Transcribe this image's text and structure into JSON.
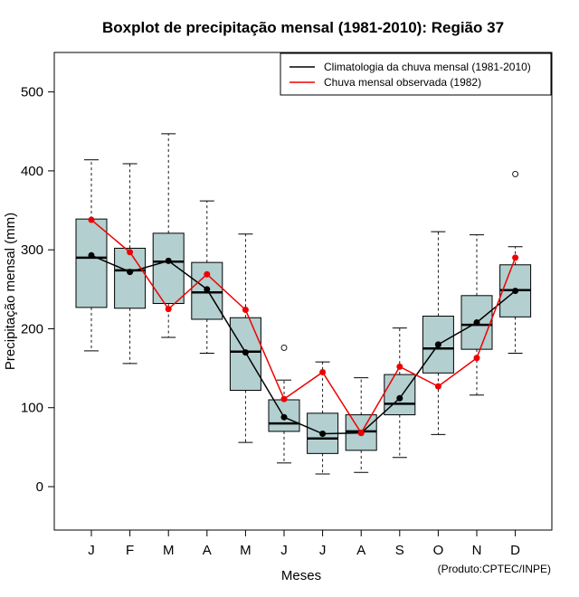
{
  "chart_data": {
    "type": "boxplot",
    "title": "Boxplot de precipitação mensal (1981-2010): Região 37",
    "xlabel": "Meses",
    "ylabel": "Precipitação mensal (mm)",
    "ylim": [
      -55,
      550
    ],
    "yticks": [
      0,
      100,
      200,
      300,
      400,
      500
    ],
    "categories": [
      "J",
      "F",
      "M",
      "A",
      "M",
      "J",
      "J",
      "A",
      "S",
      "O",
      "N",
      "D"
    ],
    "boxes": [
      {
        "month": "J",
        "whisker_low": 172,
        "q1": 227,
        "median": 290,
        "q3": 339,
        "whisker_high": 414,
        "outliers": []
      },
      {
        "month": "F",
        "whisker_low": 156,
        "q1": 226,
        "median": 274,
        "q3": 302,
        "whisker_high": 409,
        "outliers": []
      },
      {
        "month": "M",
        "whisker_low": 189,
        "q1": 232,
        "median": 285,
        "q3": 321,
        "whisker_high": 447,
        "outliers": []
      },
      {
        "month": "A",
        "whisker_low": 169,
        "q1": 212,
        "median": 246,
        "q3": 284,
        "whisker_high": 362,
        "outliers": []
      },
      {
        "month": "M",
        "whisker_low": 56,
        "q1": 122,
        "median": 171,
        "q3": 214,
        "whisker_high": 320,
        "outliers": []
      },
      {
        "month": "J",
        "whisker_low": 30,
        "q1": 70,
        "median": 80,
        "q3": 110,
        "whisker_high": 135,
        "outliers": [
          176
        ]
      },
      {
        "month": "J",
        "whisker_low": 16,
        "q1": 42,
        "median": 61,
        "q3": 93,
        "whisker_high": 158,
        "outliers": []
      },
      {
        "month": "A",
        "whisker_low": 18,
        "q1": 46,
        "median": 70,
        "q3": 91,
        "whisker_high": 138,
        "outliers": []
      },
      {
        "month": "S",
        "whisker_low": 37,
        "q1": 91,
        "median": 105,
        "q3": 142,
        "whisker_high": 201,
        "outliers": []
      },
      {
        "month": "O",
        "whisker_low": 66,
        "q1": 144,
        "median": 175,
        "q3": 216,
        "whisker_high": 323,
        "outliers": []
      },
      {
        "month": "N",
        "whisker_low": 116,
        "q1": 174,
        "median": 205,
        "q3": 242,
        "whisker_high": 319,
        "outliers": []
      },
      {
        "month": "D",
        "whisker_low": 169,
        "q1": 215,
        "median": 249,
        "q3": 281,
        "whisker_high": 304,
        "outliers": [
          396
        ]
      }
    ],
    "series": [
      {
        "name": "Climatologia da chuva mensal (1981-2010)",
        "color": "#000000",
        "values": [
          293,
          272,
          286,
          250,
          170,
          88,
          67,
          68,
          112,
          180,
          208,
          248
        ]
      },
      {
        "name": "Chuva mensal observada (1982)",
        "color": "#ee0000",
        "values": [
          338,
          297,
          225,
          269,
          224,
          111,
          145,
          68,
          152,
          127,
          163,
          290
        ]
      }
    ],
    "legend_position": "top-right",
    "box_fill": "#b3cfcf",
    "footer": "(Produto:CPTEC/INPE)"
  }
}
